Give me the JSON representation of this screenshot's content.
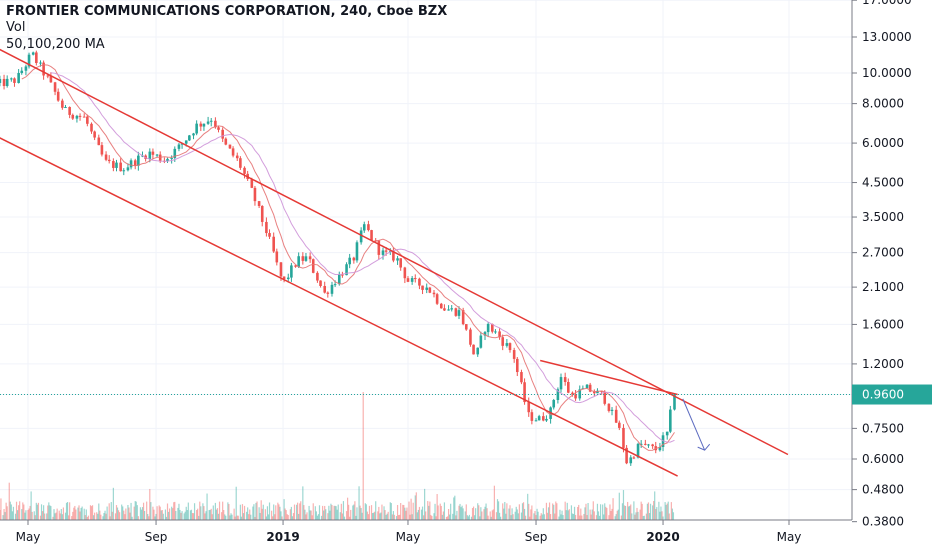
{
  "header": {
    "symbol_line": "FRONTIER COMMUNICATIONS CORPORATION, 240, Cboe BZX",
    "indicator_1": "Vol",
    "indicator_2": "50,100,200 MA"
  },
  "colors": {
    "up": "#26a69a",
    "down": "#ef5350",
    "trendline": "#e53935",
    "ma_fast": "#e57373",
    "ma_slow": "#ce93d8",
    "arrow": "#5c6bc0",
    "price_line": "#26a69a",
    "grid": "#f0f3fa"
  },
  "chart_data": {
    "type": "candlestick",
    "y_scale": "log",
    "ylim": [
      0.38,
      17.2
    ],
    "y_ticks": [
      "17.0000",
      "13.0000",
      "10.0000",
      "8.0000",
      "6.0000",
      "4.5000",
      "3.5000",
      "2.7000",
      "2.1000",
      "1.6000",
      "1.2000",
      "0.9600",
      "0.7500",
      "0.6000",
      "0.4800",
      "0.3800"
    ],
    "x_ticks": [
      "May",
      "Sep",
      "2019",
      "May",
      "Sep",
      "2020",
      "May"
    ],
    "last_price": "0.9600",
    "price_path": [
      [
        "2018-04-01",
        9.2
      ],
      [
        "2018-04-20",
        9.5
      ],
      [
        "2018-05-05",
        11.5
      ],
      [
        "2018-05-20",
        9.6
      ],
      [
        "2018-06-05",
        7.6
      ],
      [
        "2018-06-25",
        7.2
      ],
      [
        "2018-07-05",
        6.0
      ],
      [
        "2018-07-15",
        5.2
      ],
      [
        "2018-08-01",
        5.0
      ],
      [
        "2018-08-25",
        5.6
      ],
      [
        "2018-09-10",
        5.3
      ],
      [
        "2018-09-25",
        5.9
      ],
      [
        "2018-10-10",
        6.8
      ],
      [
        "2018-10-25",
        7.2
      ],
      [
        "2018-11-05",
        6.0
      ],
      [
        "2018-11-20",
        5.2
      ],
      [
        "2018-12-05",
        4.0
      ],
      [
        "2018-12-20",
        2.9
      ],
      [
        "2019-01-01",
        2.15
      ],
      [
        "2019-01-15",
        2.55
      ],
      [
        "2019-01-25",
        2.6
      ],
      [
        "2019-02-10",
        2.0
      ],
      [
        "2019-02-25",
        2.3
      ],
      [
        "2019-03-10",
        2.6
      ],
      [
        "2019-03-20",
        3.3
      ],
      [
        "2019-04-05",
        2.7
      ],
      [
        "2019-04-20",
        2.6
      ],
      [
        "2019-05-01",
        2.2
      ],
      [
        "2019-05-20",
        2.1
      ],
      [
        "2019-06-05",
        1.8
      ],
      [
        "2019-06-20",
        1.75
      ],
      [
        "2019-07-05",
        1.25
      ],
      [
        "2019-07-15",
        1.6
      ],
      [
        "2019-07-25",
        1.5
      ],
      [
        "2019-08-10",
        1.3
      ],
      [
        "2019-08-25",
        0.82
      ],
      [
        "2019-09-05",
        0.8
      ],
      [
        "2019-09-15",
        0.85
      ],
      [
        "2019-09-25",
        1.1
      ],
      [
        "2019-10-05",
        0.95
      ],
      [
        "2019-10-20",
        1.0
      ],
      [
        "2019-11-05",
        0.95
      ],
      [
        "2019-11-20",
        0.75
      ],
      [
        "2019-11-28",
        0.58
      ],
      [
        "2019-12-10",
        0.67
      ],
      [
        "2019-12-25",
        0.64
      ],
      [
        "2020-01-05",
        0.72
      ],
      [
        "2020-01-12",
        0.96
      ]
    ],
    "volume_spike_date": "2019-03-20",
    "moving_averages": [
      "50",
      "100",
      "200"
    ],
    "trendlines": [
      {
        "from": [
          "2018-04-01",
          12.0
        ],
        "to": [
          "2020-04-30",
          0.62
        ]
      },
      {
        "from": [
          "2018-04-01",
          6.3
        ],
        "to": [
          "2020-01-15",
          0.53
        ]
      },
      {
        "from": [
          "2019-09-05",
          1.23
        ],
        "to": [
          "2020-01-15",
          0.96
        ]
      }
    ],
    "projection_arrow": {
      "from": [
        "2020-01-20",
        0.93
      ],
      "to": [
        "2020-02-10",
        0.64
      ]
    }
  }
}
